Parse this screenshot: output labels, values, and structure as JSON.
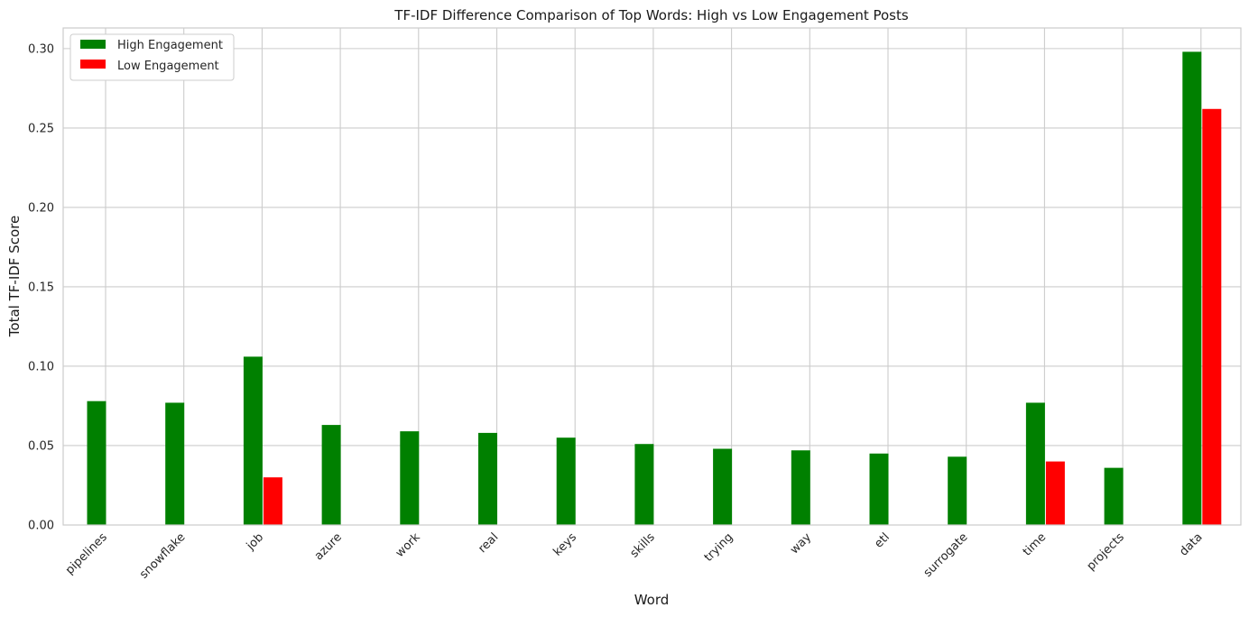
{
  "chart_data": {
    "type": "bar",
    "title": "TF-IDF Difference Comparison of Top Words: High vs Low Engagement Posts",
    "xlabel": "Word",
    "ylabel": "Total TF-IDF Score",
    "categories": [
      "pipelines",
      "snowflake",
      "job",
      "azure",
      "work",
      "real",
      "keys",
      "skills",
      "trying",
      "way",
      "etl",
      "surrogate",
      "time",
      "projects",
      "data"
    ],
    "series": [
      {
        "name": "High Engagement",
        "color": "#008000",
        "values": [
          0.078,
          0.077,
          0.106,
          0.063,
          0.059,
          0.058,
          0.055,
          0.051,
          0.048,
          0.047,
          0.045,
          0.043,
          0.077,
          0.036,
          0.298
        ]
      },
      {
        "name": "Low Engagement",
        "color": "#ff0000",
        "values": [
          0,
          0,
          0.03,
          0,
          0,
          0,
          0,
          0,
          0,
          0,
          0,
          0,
          0.04,
          0,
          0.262
        ]
      }
    ],
    "ylim": [
      0,
      0.313
    ],
    "yticks": [
      0.0,
      0.05,
      0.1,
      0.15,
      0.2,
      0.25,
      0.3
    ],
    "ytick_labels": [
      "0.00",
      "0.05",
      "0.10",
      "0.15",
      "0.20",
      "0.25",
      "0.30"
    ],
    "grid": true,
    "legend_position": "top-left"
  }
}
